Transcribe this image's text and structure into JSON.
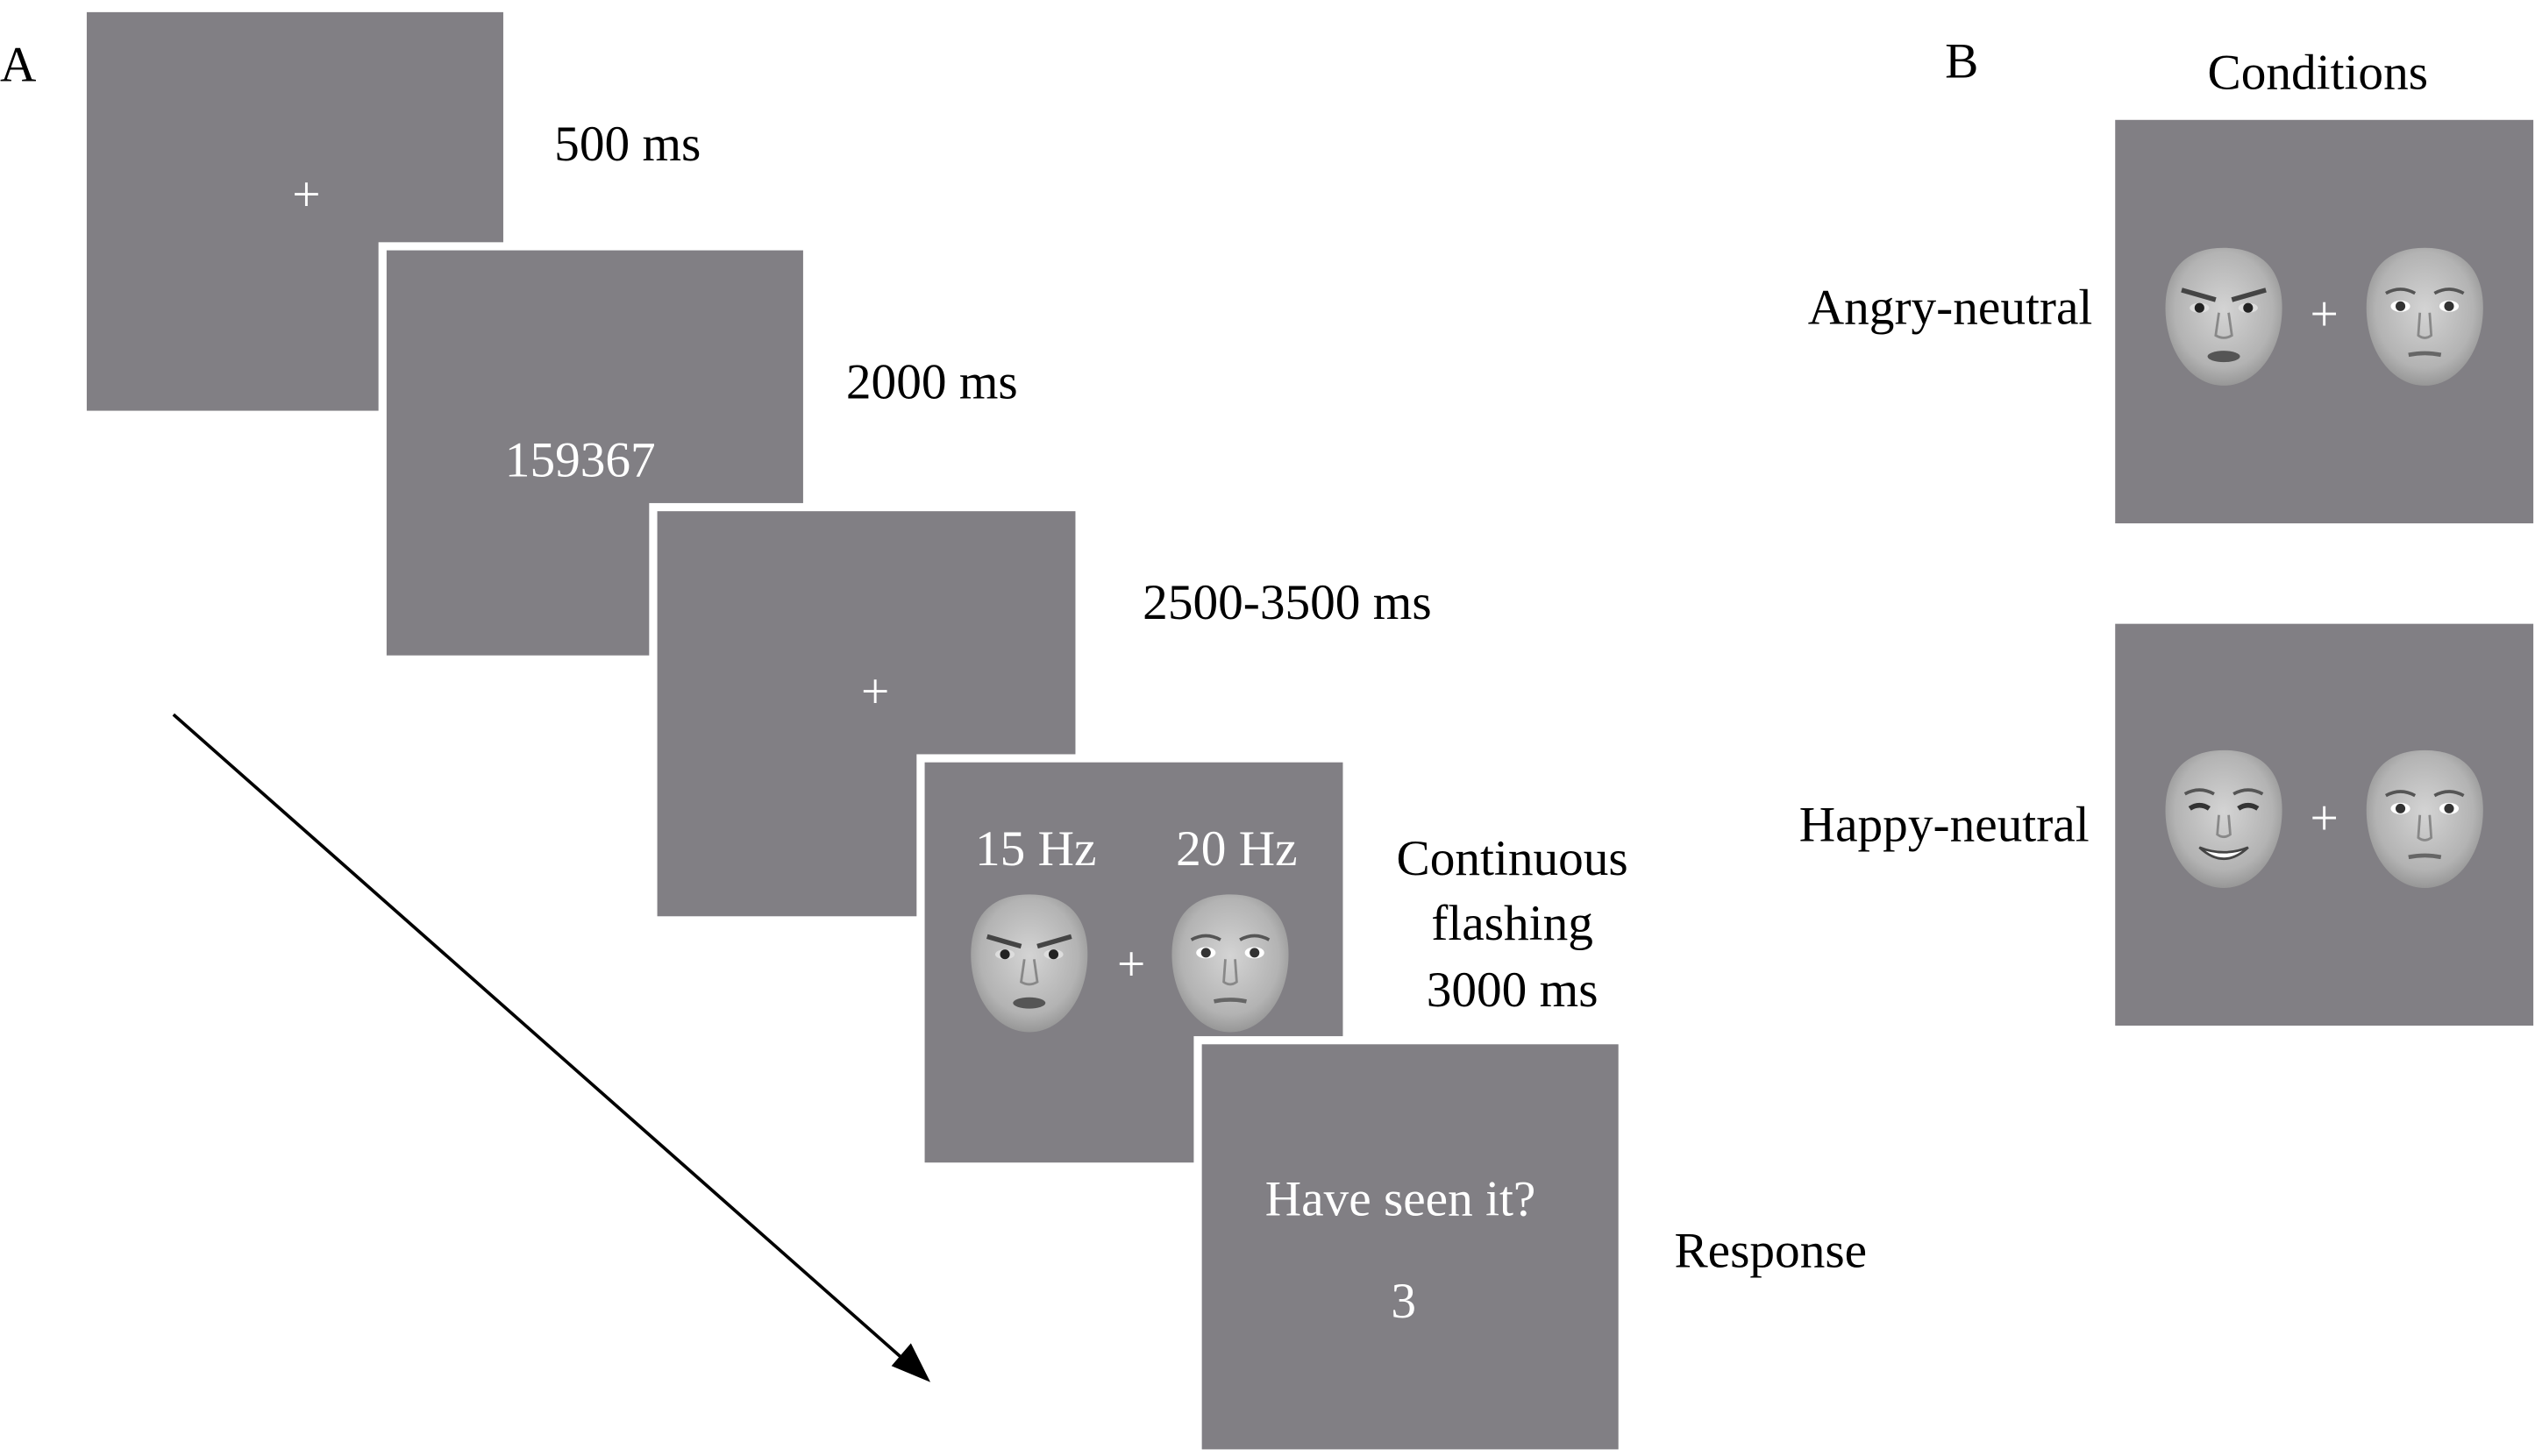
{
  "panel_a": {
    "letter": "A",
    "screens": [
      {
        "content": "+",
        "duration": "500 ms"
      },
      {
        "content": "159367",
        "duration": "2000 ms"
      },
      {
        "content": "+",
        "duration": "2500-3500 ms"
      },
      {
        "left_label": "15 Hz",
        "right_label": "20 Hz",
        "fixation": "+",
        "duration_lines": [
          "Continuous",
          "flashing",
          "3000 ms"
        ]
      },
      {
        "question": "Have seen it?",
        "answer": "3",
        "duration": "Response"
      }
    ]
  },
  "panel_b": {
    "letter": "B",
    "title": "Conditions",
    "conditions": [
      {
        "label": "Angry-neutral",
        "fixation": "+"
      },
      {
        "label": "Happy-neutral",
        "fixation": "+"
      }
    ]
  },
  "colors": {
    "screen": "#817f84",
    "text_on_screen": "#ffffff"
  }
}
